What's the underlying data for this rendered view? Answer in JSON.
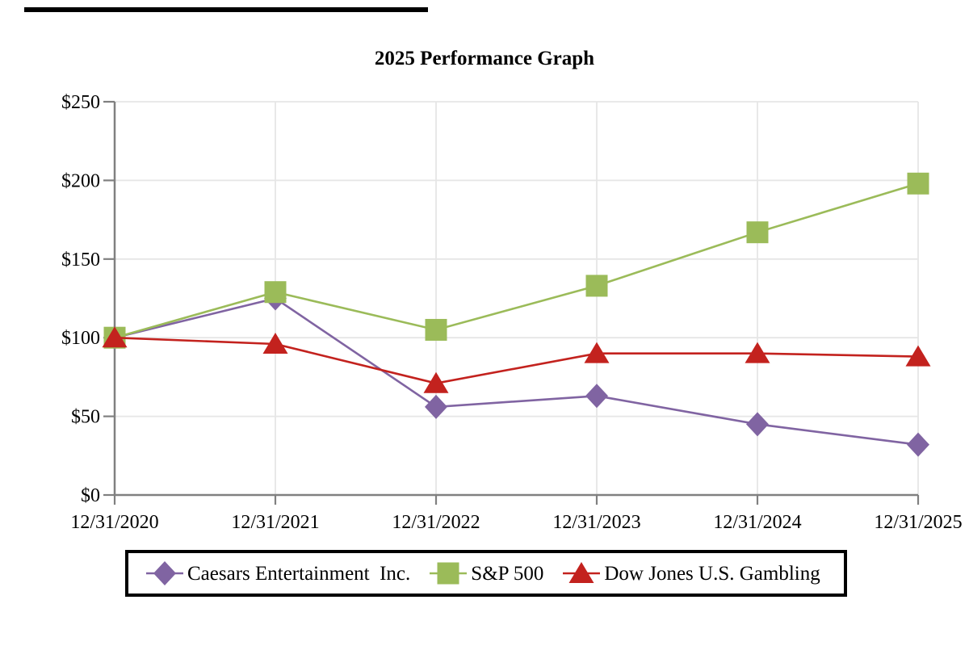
{
  "chart_data": {
    "type": "line",
    "title": "2025 Performance Graph",
    "categories": [
      "12/31/2020",
      "12/31/2021",
      "12/31/2022",
      "12/31/2023",
      "12/31/2024",
      "12/31/2025"
    ],
    "series": [
      {
        "name": "Caesars Entertainment  Inc.",
        "marker": "diamond",
        "color": "#8064A2",
        "values": [
          100,
          125,
          56,
          63,
          45,
          32
        ]
      },
      {
        "name": "S&P 500",
        "marker": "square",
        "color": "#9BBB59",
        "values": [
          100,
          129,
          105,
          133,
          167,
          198
        ]
      },
      {
        "name": "Dow Jones U.S. Gambling",
        "marker": "triangle",
        "color": "#C3221E",
        "values": [
          100,
          96,
          71,
          90,
          90,
          88
        ]
      }
    ],
    "ylim": [
      0,
      250
    ],
    "y_ticks": [
      {
        "value": 0,
        "label": "$0"
      },
      {
        "value": 50,
        "label": "$50"
      },
      {
        "value": 100,
        "label": "$100"
      },
      {
        "value": 150,
        "label": "$150"
      },
      {
        "value": 200,
        "label": "$200"
      },
      {
        "value": 250,
        "label": "$250"
      }
    ],
    "grid": true,
    "legend_position": "bottom",
    "colors": {
      "axis": "#808080",
      "gridline": "#E6E6E6",
      "text": "#000000"
    }
  }
}
